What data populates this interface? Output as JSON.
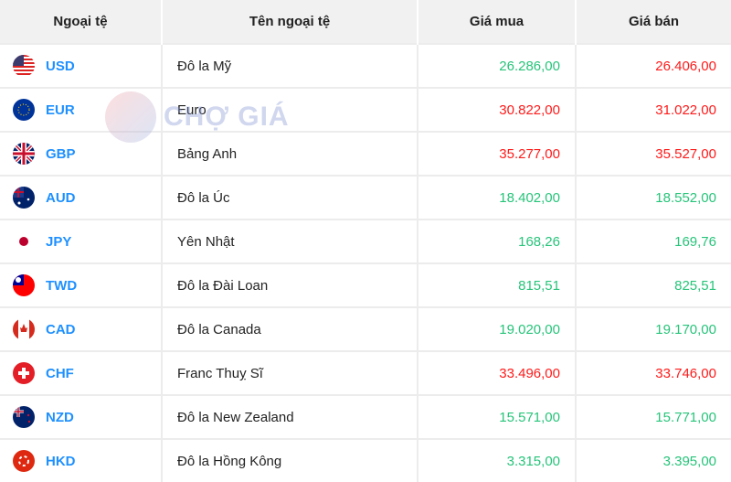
{
  "headers": [
    "Ngoại tệ",
    "Tên ngoại tệ",
    "Giá mua",
    "Giá bán"
  ],
  "watermark": "CHỢ GIÁ",
  "colors": {
    "up": "#27c47a",
    "down": "#ff1a1a",
    "code": "#1e90ff"
  },
  "rows": [
    {
      "code": "USD",
      "name": "Đô la Mỹ",
      "buy": "26.286,00",
      "sell": "26.406,00",
      "buy_trend": "up",
      "sell_trend": "down",
      "flag": "us-flag"
    },
    {
      "code": "EUR",
      "name": "Euro",
      "buy": "30.822,00",
      "sell": "31.022,00",
      "buy_trend": "down",
      "sell_trend": "down",
      "flag": "eu-flag"
    },
    {
      "code": "GBP",
      "name": "Bảng Anh",
      "buy": "35.277,00",
      "sell": "35.527,00",
      "buy_trend": "down",
      "sell_trend": "down",
      "flag": "gb-flag"
    },
    {
      "code": "AUD",
      "name": "Đô la Úc",
      "buy": "18.402,00",
      "sell": "18.552,00",
      "buy_trend": "up",
      "sell_trend": "up",
      "flag": "au-flag"
    },
    {
      "code": "JPY",
      "name": "Yên Nhật",
      "buy": "168,26",
      "sell": "169,76",
      "buy_trend": "up",
      "sell_trend": "up",
      "flag": "jp-flag"
    },
    {
      "code": "TWD",
      "name": "Đô la Đài Loan",
      "buy": "815,51",
      "sell": "825,51",
      "buy_trend": "up",
      "sell_trend": "up",
      "flag": "tw-flag"
    },
    {
      "code": "CAD",
      "name": "Đô la Canada",
      "buy": "19.020,00",
      "sell": "19.170,00",
      "buy_trend": "up",
      "sell_trend": "up",
      "flag": "ca-flag"
    },
    {
      "code": "CHF",
      "name": "Franc Thuỵ Sĩ",
      "buy": "33.496,00",
      "sell": "33.746,00",
      "buy_trend": "down",
      "sell_trend": "down",
      "flag": "ch-flag"
    },
    {
      "code": "NZD",
      "name": "Đô la New Zealand",
      "buy": "15.571,00",
      "sell": "15.771,00",
      "buy_trend": "up",
      "sell_trend": "up",
      "flag": "nz-flag"
    },
    {
      "code": "HKD",
      "name": "Đô la Hồng Kông",
      "buy": "3.315,00",
      "sell": "3.395,00",
      "buy_trend": "up",
      "sell_trend": "up",
      "flag": "hk-flag"
    }
  ]
}
